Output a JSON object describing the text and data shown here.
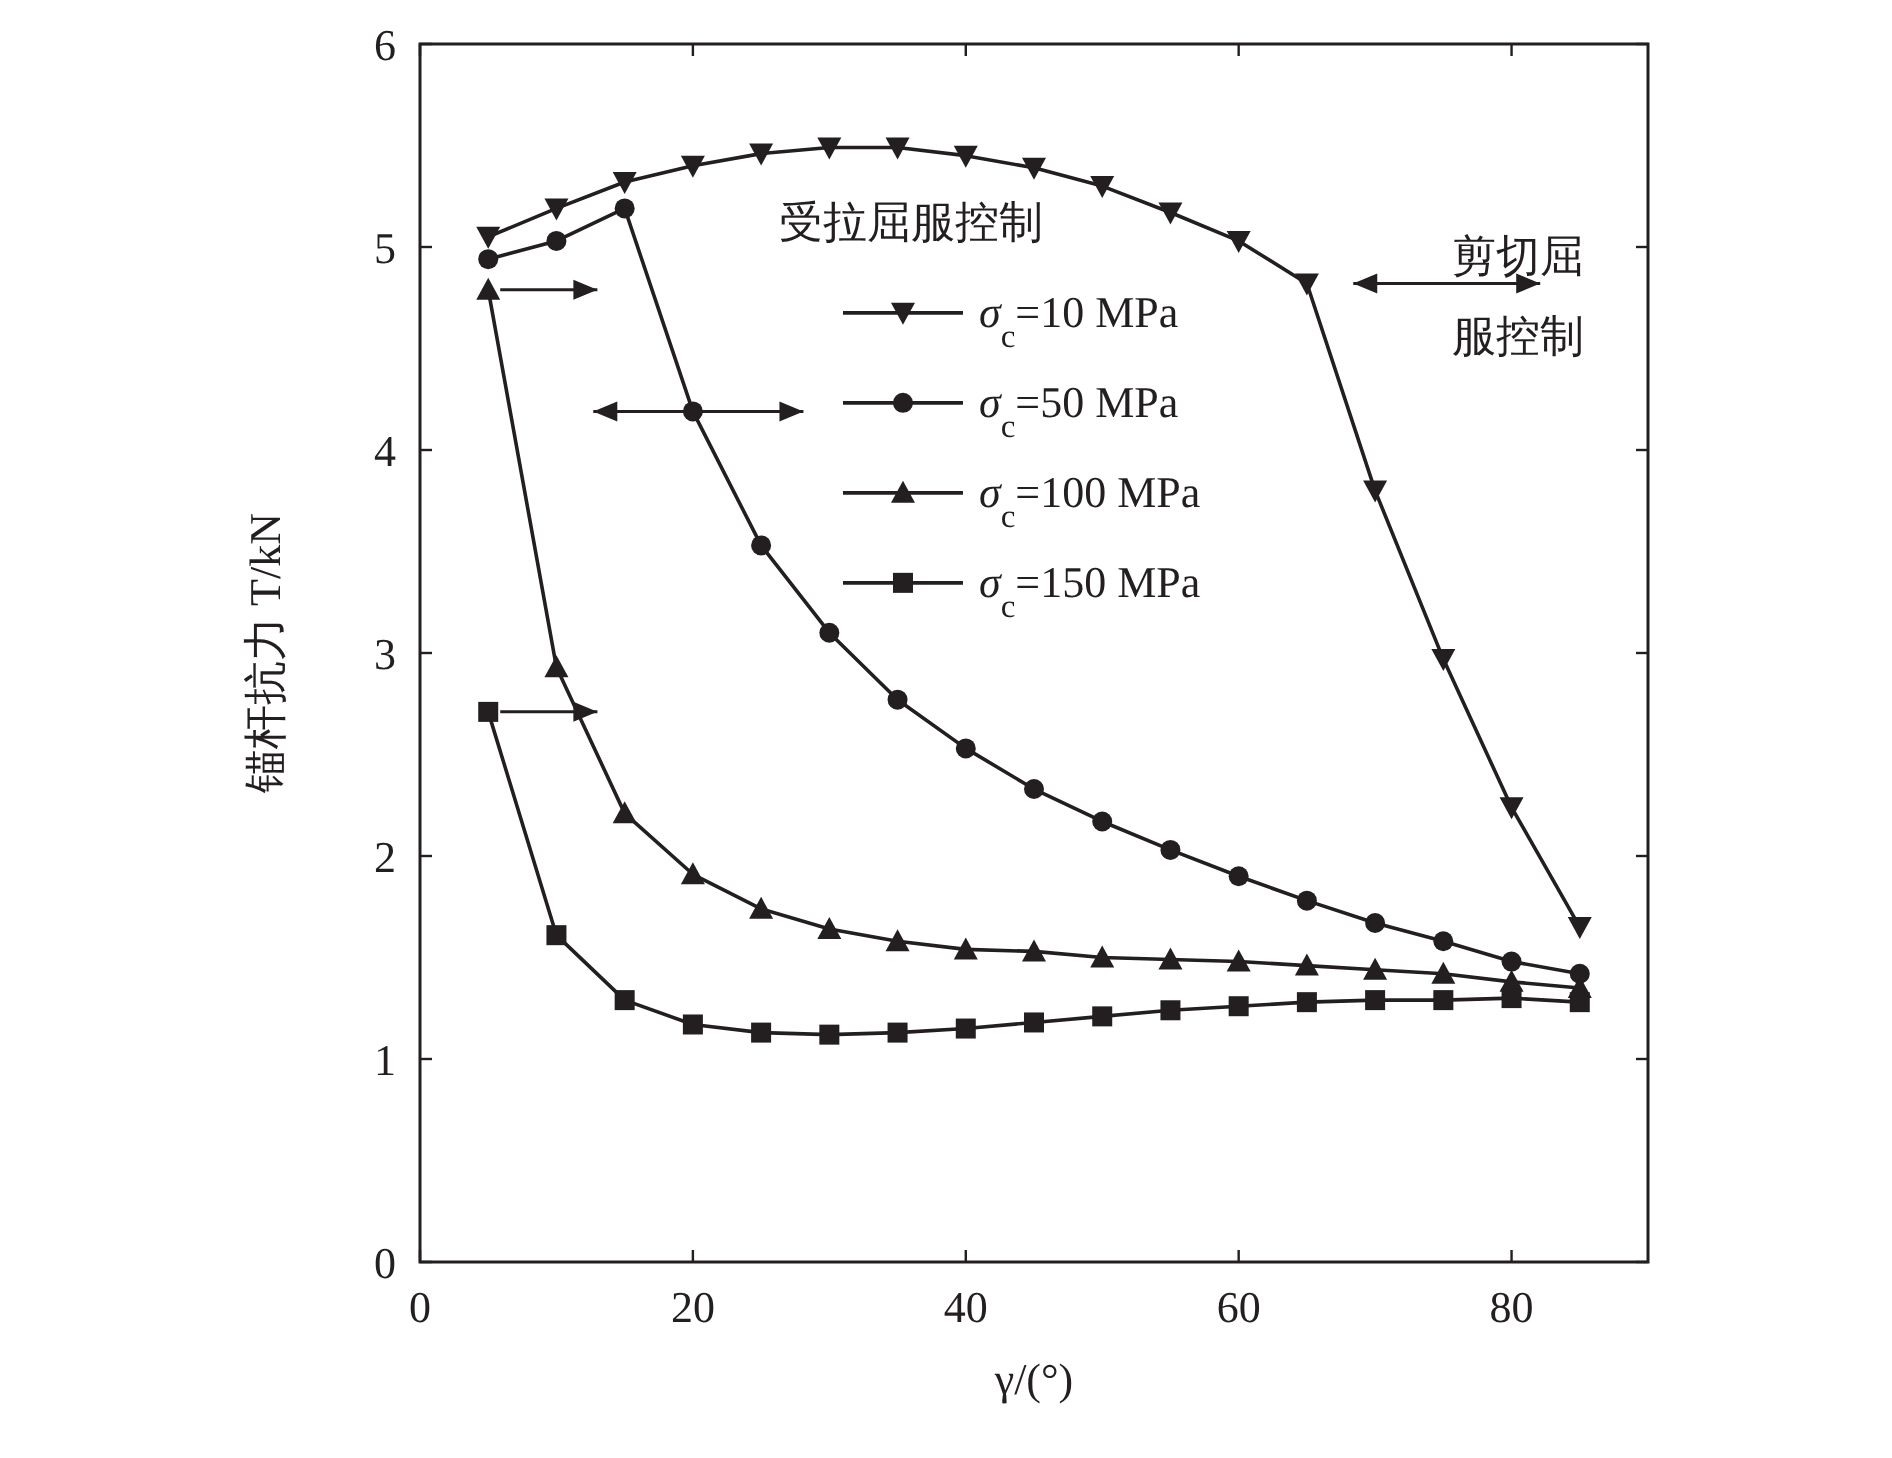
{
  "chart_data": {
    "type": "line",
    "xlabel": "γ/(°)",
    "ylabel": "锚杆抗力 T/kN",
    "legend_title": "受拉屈服控制",
    "annotations": [
      "剪切屈服控制"
    ],
    "x": [
      5,
      10,
      15,
      20,
      25,
      30,
      35,
      40,
      45,
      50,
      55,
      60,
      65,
      70,
      75,
      80,
      85
    ],
    "xlim": [
      0,
      90
    ],
    "xticks": [
      0,
      20,
      40,
      60,
      80
    ],
    "ylim": [
      0,
      6
    ],
    "yticks": [
      0,
      1,
      2,
      3,
      4,
      5,
      6
    ],
    "grid": false,
    "legend": "top right",
    "series": [
      {
        "name": "σ$_{c}$=10 MPa",
        "color": "#231f20",
        "marker": "triangle-down",
        "values": [
          5.05,
          5.19,
          5.32,
          5.4,
          5.46,
          5.49,
          5.49,
          5.45,
          5.39,
          5.3,
          5.17,
          5.03,
          4.82,
          3.8,
          2.97,
          2.24,
          1.65
        ]
      },
      {
        "name": "σ$_{c}$=50 MPa",
        "color": "#231f20",
        "marker": "circle",
        "values": [
          4.94,
          5.03,
          5.19,
          4.19,
          3.53,
          3.1,
          2.77,
          2.53,
          2.33,
          2.17,
          2.03,
          1.9,
          1.78,
          1.67,
          1.58,
          1.48,
          1.42
        ]
      },
      {
        "name": "σ$_{c}$=100 MPa",
        "color": "#231f20",
        "marker": "triangle",
        "values": [
          4.79,
          2.93,
          2.21,
          1.91,
          1.74,
          1.64,
          1.58,
          1.54,
          1.53,
          1.5,
          1.49,
          1.48,
          1.46,
          1.44,
          1.42,
          1.38,
          1.35
        ]
      },
      {
        "name": "σ$_{c}$=150 MPa",
        "color": "#231f20",
        "marker": "square",
        "values": [
          2.71,
          1.61,
          1.29,
          1.17,
          1.13,
          1.12,
          1.13,
          1.15,
          1.18,
          1.21,
          1.24,
          1.26,
          1.28,
          1.29,
          1.29,
          1.3,
          1.28
        ]
      }
    ]
  }
}
